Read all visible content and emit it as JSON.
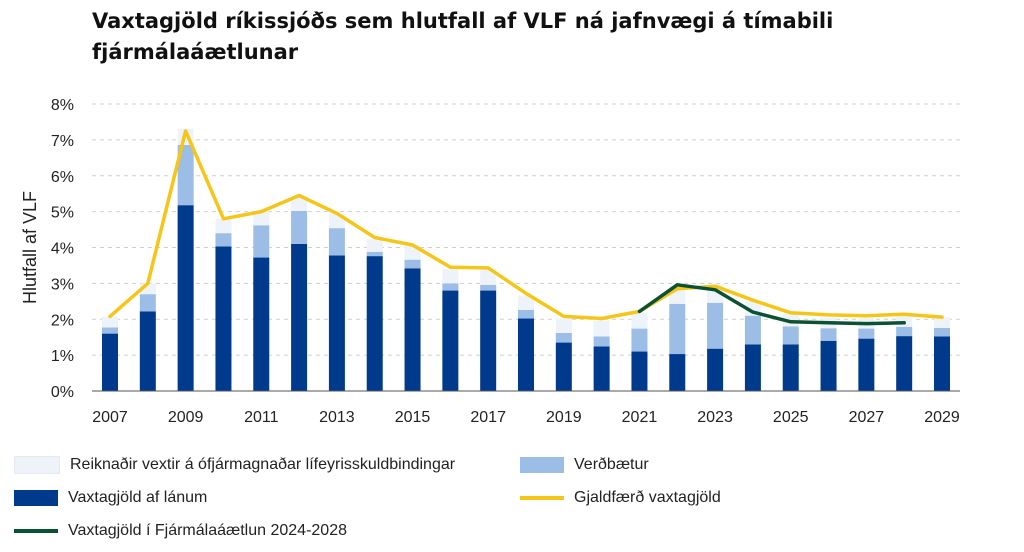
{
  "title": "Vaxtagjöld ríkissjóðs sem hlutfall af VLF ná jafnvægi á tímabili fjármálaáætlunar",
  "chart_data": {
    "type": "bar",
    "title": "Vaxtagjöld ríkissjóðs sem hlutfall af VLF ná jafnvægi á tímabili fjármálaáætlunar",
    "xlabel": "",
    "ylabel": "Hlutfall af VLF",
    "ylim": [
      0,
      8
    ],
    "yticks": [
      "0%",
      "1%",
      "2%",
      "3%",
      "4%",
      "5%",
      "6%",
      "7%",
      "8%"
    ],
    "grid": true,
    "stacked": true,
    "categories": [
      2007,
      2008,
      2009,
      2010,
      2011,
      2012,
      2013,
      2014,
      2015,
      2016,
      2017,
      2018,
      2019,
      2020,
      2021,
      2022,
      2023,
      2024,
      2025,
      2026,
      2027,
      2028,
      2029
    ],
    "xtick_labels": [
      "2007",
      "2009",
      "2011",
      "2013",
      "2015",
      "2017",
      "2019",
      "2021",
      "2023",
      "2025",
      "2027",
      "2029"
    ],
    "series": [
      {
        "name": "Vaxtagjöld af lánum",
        "kind": "bar",
        "color": "#003a8c",
        "values": [
          1.6,
          2.22,
          5.18,
          4.03,
          3.72,
          4.1,
          3.78,
          3.76,
          3.42,
          2.8,
          2.8,
          2.02,
          1.35,
          1.24,
          1.1,
          1.03,
          1.18,
          1.3,
          1.3,
          1.4,
          1.46,
          1.53,
          1.52
        ]
      },
      {
        "name": "Verðbætur",
        "kind": "bar",
        "color": "#9bbde6",
        "values": [
          0.17,
          0.48,
          1.68,
          0.37,
          0.9,
          0.92,
          0.76,
          0.12,
          0.24,
          0.2,
          0.16,
          0.24,
          0.27,
          0.28,
          0.64,
          1.4,
          1.28,
          0.8,
          0.5,
          0.35,
          0.28,
          0.26,
          0.24
        ]
      },
      {
        "name": "Reiknaðir vextir á ófjármagnaðar lífeyrisskuldbindingar",
        "kind": "bar",
        "color": "#eef3fa",
        "values": [
          0.3,
          0.3,
          0.45,
          0.4,
          0.38,
          0.4,
          0.4,
          0.35,
          0.4,
          0.4,
          0.45,
          0.4,
          0.4,
          0.45,
          0.45,
          0.5,
          0.5,
          0.4,
          0.35,
          0.3,
          0.3,
          0.3,
          0.3
        ]
      },
      {
        "name": "Gjaldfærð vaxtagjöld",
        "kind": "line",
        "color": "#f5c518",
        "values": [
          2.08,
          3.0,
          7.25,
          4.8,
          5.0,
          5.45,
          4.95,
          4.28,
          4.07,
          3.45,
          3.43,
          2.72,
          2.08,
          2.02,
          2.22,
          2.85,
          2.92,
          2.53,
          2.18,
          2.12,
          2.1,
          2.14,
          2.06
        ]
      },
      {
        "name": "Vaxtagjöld í Fjármálaáætlun 2024-2028",
        "kind": "line",
        "color": "#0b5134",
        "x": [
          2021,
          2022,
          2023,
          2024,
          2025,
          2026,
          2027,
          2028
        ],
        "values": [
          2.22,
          2.96,
          2.82,
          2.2,
          1.93,
          1.9,
          1.88,
          1.9
        ]
      }
    ],
    "legend": {
      "placement": "bottom",
      "items": [
        {
          "label": "Reiknaðir vextir á ófjármagnaðar lífeyrisskuldbindingar",
          "kind": "box",
          "color": "#eef3fa"
        },
        {
          "label": "Verðbætur",
          "kind": "box",
          "color": "#9bbde6"
        },
        {
          "label": "Vaxtagjöld af lánum",
          "kind": "box",
          "color": "#003a8c"
        },
        {
          "label": "Gjaldfærð vaxtagjöld",
          "kind": "line",
          "color": "#f5c518"
        },
        {
          "label": "Vaxtagjöld í Fjármálaáætlun 2024-2028",
          "kind": "line",
          "color": "#0b5134"
        }
      ]
    }
  }
}
